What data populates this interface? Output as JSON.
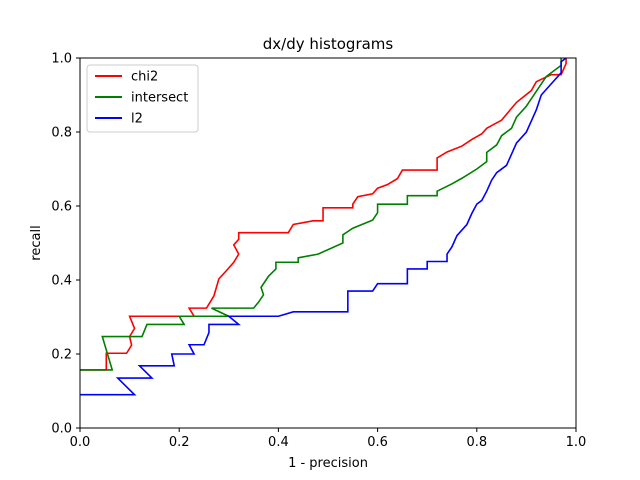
{
  "chart_data": {
    "type": "line",
    "title": "dx/dy histograms",
    "xlabel": "1 - precision",
    "ylabel": "recall",
    "xlim": [
      0,
      1
    ],
    "ylim": [
      0,
      1
    ],
    "xticks": [
      "0.0",
      "0.2",
      "0.4",
      "0.6",
      "0.8",
      "1.0"
    ],
    "yticks": [
      "0.0",
      "0.2",
      "0.4",
      "0.6",
      "0.8",
      "1.0"
    ],
    "grid": false,
    "legend_position": "upper-left",
    "series": [
      {
        "name": "chi2",
        "color": "#ff0000",
        "points": [
          [
            0.0,
            0.157
          ],
          [
            0.053,
            0.157
          ],
          [
            0.053,
            0.202
          ],
          [
            0.094,
            0.202
          ],
          [
            0.104,
            0.224
          ],
          [
            0.1,
            0.247
          ],
          [
            0.11,
            0.269
          ],
          [
            0.1,
            0.302
          ],
          [
            0.23,
            0.302
          ],
          [
            0.22,
            0.324
          ],
          [
            0.255,
            0.324
          ],
          [
            0.26,
            0.335
          ],
          [
            0.27,
            0.357
          ],
          [
            0.275,
            0.38
          ],
          [
            0.28,
            0.403
          ],
          [
            0.295,
            0.425
          ],
          [
            0.31,
            0.448
          ],
          [
            0.32,
            0.47
          ],
          [
            0.31,
            0.495
          ],
          [
            0.32,
            0.51
          ],
          [
            0.32,
            0.528
          ],
          [
            0.42,
            0.528
          ],
          [
            0.43,
            0.55
          ],
          [
            0.47,
            0.56
          ],
          [
            0.49,
            0.56
          ],
          [
            0.49,
            0.595
          ],
          [
            0.55,
            0.595
          ],
          [
            0.55,
            0.605
          ],
          [
            0.56,
            0.625
          ],
          [
            0.59,
            0.633
          ],
          [
            0.6,
            0.648
          ],
          [
            0.62,
            0.658
          ],
          [
            0.64,
            0.674
          ],
          [
            0.65,
            0.697
          ],
          [
            0.72,
            0.697
          ],
          [
            0.72,
            0.73
          ],
          [
            0.74,
            0.746
          ],
          [
            0.77,
            0.762
          ],
          [
            0.79,
            0.78
          ],
          [
            0.81,
            0.795
          ],
          [
            0.82,
            0.81
          ],
          [
            0.85,
            0.832
          ],
          [
            0.88,
            0.88
          ],
          [
            0.91,
            0.912
          ],
          [
            0.92,
            0.936
          ],
          [
            0.95,
            0.955
          ],
          [
            0.97,
            0.955
          ],
          [
            0.98,
            0.985
          ],
          [
            0.98,
            1.0
          ]
        ]
      },
      {
        "name": "intersect",
        "color": "#008000",
        "points": [
          [
            0.0,
            0.157
          ],
          [
            0.065,
            0.157
          ],
          [
            0.045,
            0.247
          ],
          [
            0.125,
            0.247
          ],
          [
            0.135,
            0.28
          ],
          [
            0.21,
            0.28
          ],
          [
            0.2,
            0.302
          ],
          [
            0.3,
            0.302
          ],
          [
            0.265,
            0.324
          ],
          [
            0.35,
            0.324
          ],
          [
            0.36,
            0.34
          ],
          [
            0.37,
            0.36
          ],
          [
            0.365,
            0.38
          ],
          [
            0.375,
            0.4
          ],
          [
            0.38,
            0.41
          ],
          [
            0.395,
            0.43
          ],
          [
            0.395,
            0.448
          ],
          [
            0.44,
            0.448
          ],
          [
            0.44,
            0.46
          ],
          [
            0.48,
            0.47
          ],
          [
            0.53,
            0.5
          ],
          [
            0.53,
            0.522
          ],
          [
            0.55,
            0.54
          ],
          [
            0.59,
            0.562
          ],
          [
            0.6,
            0.582
          ],
          [
            0.6,
            0.605
          ],
          [
            0.66,
            0.605
          ],
          [
            0.66,
            0.628
          ],
          [
            0.72,
            0.628
          ],
          [
            0.72,
            0.64
          ],
          [
            0.75,
            0.66
          ],
          [
            0.77,
            0.675
          ],
          [
            0.8,
            0.7
          ],
          [
            0.82,
            0.72
          ],
          [
            0.82,
            0.745
          ],
          [
            0.84,
            0.765
          ],
          [
            0.85,
            0.79
          ],
          [
            0.87,
            0.81
          ],
          [
            0.88,
            0.84
          ],
          [
            0.9,
            0.87
          ],
          [
            0.91,
            0.89
          ],
          [
            0.92,
            0.91
          ],
          [
            0.93,
            0.93
          ],
          [
            0.94,
            0.95
          ],
          [
            0.97,
            0.98
          ],
          [
            0.97,
            1.0
          ]
        ]
      },
      {
        "name": "l2",
        "color": "#0000ff",
        "points": [
          [
            0.0,
            0.09
          ],
          [
            0.11,
            0.09
          ],
          [
            0.076,
            0.135
          ],
          [
            0.145,
            0.135
          ],
          [
            0.12,
            0.168
          ],
          [
            0.19,
            0.168
          ],
          [
            0.185,
            0.2
          ],
          [
            0.23,
            0.2
          ],
          [
            0.22,
            0.225
          ],
          [
            0.25,
            0.225
          ],
          [
            0.26,
            0.258
          ],
          [
            0.26,
            0.28
          ],
          [
            0.32,
            0.28
          ],
          [
            0.3,
            0.302
          ],
          [
            0.4,
            0.302
          ],
          [
            0.43,
            0.314
          ],
          [
            0.54,
            0.314
          ],
          [
            0.54,
            0.37
          ],
          [
            0.59,
            0.37
          ],
          [
            0.6,
            0.39
          ],
          [
            0.66,
            0.39
          ],
          [
            0.66,
            0.43
          ],
          [
            0.7,
            0.43
          ],
          [
            0.7,
            0.45
          ],
          [
            0.74,
            0.45
          ],
          [
            0.74,
            0.47
          ],
          [
            0.75,
            0.49
          ],
          [
            0.76,
            0.52
          ],
          [
            0.78,
            0.55
          ],
          [
            0.79,
            0.58
          ],
          [
            0.8,
            0.605
          ],
          [
            0.81,
            0.615
          ],
          [
            0.82,
            0.64
          ],
          [
            0.83,
            0.67
          ],
          [
            0.84,
            0.69
          ],
          [
            0.86,
            0.71
          ],
          [
            0.87,
            0.74
          ],
          [
            0.88,
            0.77
          ],
          [
            0.9,
            0.8
          ],
          [
            0.91,
            0.83
          ],
          [
            0.92,
            0.86
          ],
          [
            0.93,
            0.9
          ],
          [
            0.95,
            0.93
          ],
          [
            0.97,
            0.96
          ],
          [
            0.97,
            0.99
          ],
          [
            0.98,
            1.0
          ]
        ]
      }
    ]
  }
}
